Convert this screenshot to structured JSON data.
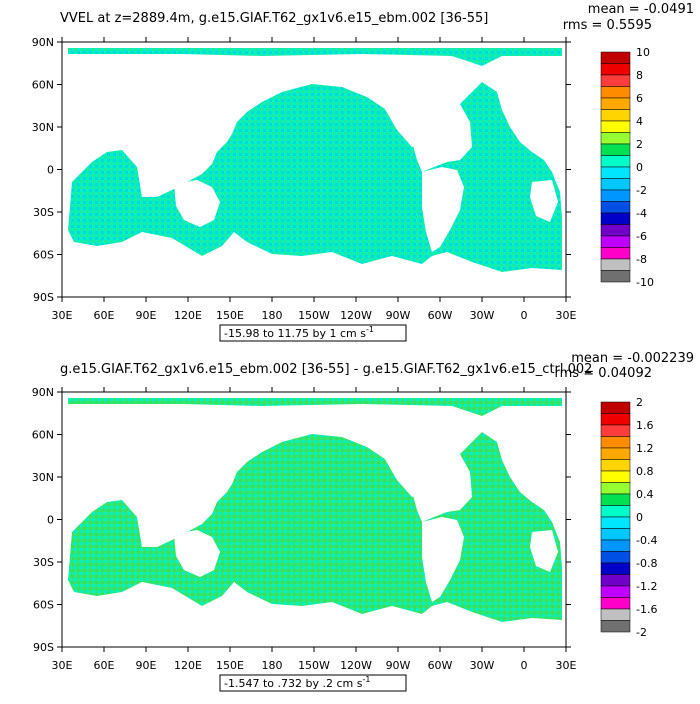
{
  "panels": [
    {
      "title": "VVEL at z=2889.4m, g.e15.GIAF.T62_gx1v6.e15_ebm.002 [36-55]",
      "mean_label": "mean = -0.0491",
      "rms_label": "rms = 0.5595",
      "range_label": "-15.98 to 11.75 by 1 cm s",
      "range_exp": "-1",
      "colorbar": {
        "labels": [
          "10",
          "8",
          "6",
          "4",
          "2",
          "0",
          "-2",
          "-4",
          "-6",
          "-8",
          "-10"
        ],
        "colors": [
          "#c00000",
          "#ee0000",
          "#ff3c3c",
          "#ff8c00",
          "#ffa800",
          "#ffd400",
          "#ffff00",
          "#96ff32",
          "#00e050",
          "#00ffc8",
          "#00e6ff",
          "#00c8ff",
          "#0096ff",
          "#0050e6",
          "#0000c8",
          "#7000c8",
          "#c000ff",
          "#ff00c8",
          "#c0c0c0",
          "#707070"
        ]
      }
    },
    {
      "title": "g.e15.GIAF.T62_gx1v6.e15_ebm.002 [36-55] - g.e15.GIAF.T62_gx1v6.e15_ctrl.002",
      "mean_label": "mean = -0.002239",
      "rms_label": "rms = 0.04092",
      "range_label": "-1.547 to .732 by .2 cm s",
      "range_exp": "-1",
      "colorbar": {
        "labels": [
          "2",
          "1.6",
          "1.2",
          "0.8",
          "0.4",
          "0",
          "-0.4",
          "-0.8",
          "-1.2",
          "-1.6",
          "-2"
        ],
        "colors": [
          "#c00000",
          "#ee0000",
          "#ff3c3c",
          "#ff8c00",
          "#ffa800",
          "#ffd400",
          "#ffff00",
          "#96ff32",
          "#00e050",
          "#00ffc8",
          "#00e6ff",
          "#00c8ff",
          "#0096ff",
          "#0050e6",
          "#0000c8",
          "#7000c8",
          "#c000ff",
          "#ff00c8",
          "#c0c0c0",
          "#707070"
        ]
      }
    }
  ],
  "axes": {
    "lat_labels": [
      "90N",
      "60N",
      "30N",
      "0",
      "30S",
      "60S",
      "90S"
    ],
    "lon_labels": [
      "30E",
      "60E",
      "90E",
      "120E",
      "150E",
      "180",
      "150W",
      "120W",
      "90W",
      "60W",
      "30W",
      "0",
      "30E"
    ]
  },
  "colors": {
    "ocean_base": "#00f0c8",
    "ocean_mid": "#26ee9a",
    "land": "#ffffff"
  }
}
